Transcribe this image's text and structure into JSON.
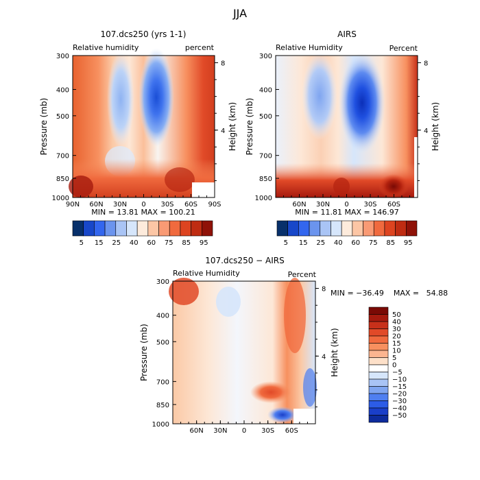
{
  "page": {
    "title": "JJA"
  },
  "chart_data": [
    {
      "type": "heatmap",
      "title": "107.dcs250 (yrs 1-1)",
      "left_label": "Relative humidity",
      "right_label": "percent",
      "ylabel": "Pressure (mb)",
      "y2label": "Height (km)",
      "xticks": [
        "90N",
        "60N",
        "30N",
        "0",
        "30S",
        "60S",
        "90S"
      ],
      "yticks": [
        "300",
        "400",
        "500",
        "700",
        "850",
        "1000"
      ],
      "y2ticks": [
        "8",
        "4"
      ],
      "min_max": "MIN =    13.81    MAX =  100.21",
      "stats": {
        "min": 13.81,
        "max": 100.21
      },
      "colorbar": {
        "labels": [
          "5",
          "15",
          "25",
          "40",
          "60",
          "75",
          "85",
          "95"
        ],
        "colors": [
          "#08306b",
          "#1847c9",
          "#3366ee",
          "#6b94ee",
          "#a9c4f5",
          "#d6e6fb",
          "#fdebdc",
          "#fcc6a5",
          "#f99a74",
          "#f06a3e",
          "#dd4420",
          "#bf2c12",
          "#8f1208"
        ]
      }
    },
    {
      "type": "heatmap",
      "title": "AIRS",
      "left_label": "Relative Humidity",
      "right_label": "Percent",
      "ylabel": "Pressure (mb)",
      "y2label": "Height (km)",
      "xticks": [
        "60N",
        "30N",
        "0",
        "30S",
        "60S"
      ],
      "yticks": [
        "300",
        "400",
        "500",
        "700",
        "850",
        "1000"
      ],
      "y2ticks": [
        "8",
        "4"
      ],
      "min_max": "MIN =    11.81    MAX =  146.97",
      "stats": {
        "min": 11.81,
        "max": 146.97
      },
      "colorbar": {
        "labels": [
          "5",
          "15",
          "25",
          "40",
          "60",
          "75",
          "85",
          "95"
        ],
        "colors": [
          "#08306b",
          "#1847c9",
          "#3366ee",
          "#6b94ee",
          "#a9c4f5",
          "#d6e6fb",
          "#fdebdc",
          "#fcc6a5",
          "#f99a74",
          "#f06a3e",
          "#dd4420",
          "#bf2c12",
          "#8f1208"
        ]
      }
    },
    {
      "type": "heatmap",
      "title": "107.dcs250 − AIRS",
      "left_label": "Relative Humidity",
      "right_label": "Percent",
      "ylabel": "Pressure (mb)",
      "y2label": "Height (km)",
      "xticks": [
        "60N",
        "30N",
        "0",
        "30S",
        "60S"
      ],
      "yticks": [
        "300",
        "400",
        "500",
        "700",
        "850",
        "1000"
      ],
      "y2ticks": [
        "8",
        "4"
      ],
      "min_max": "MIN = −36.49    MAX =   54.88",
      "stats": {
        "min": -36.49,
        "max": 54.88
      },
      "colorbar": {
        "labels": [
          "50",
          "40",
          "30",
          "20",
          "15",
          "10",
          "5",
          "0",
          "−5",
          "−10",
          "−15",
          "−20",
          "−30",
          "−40",
          "−50"
        ],
        "colors": [
          "#7a0a05",
          "#a51a0e",
          "#c7301a",
          "#e14a28",
          "#f06a3e",
          "#f7905f",
          "#fbb590",
          "#fde0c9",
          "#ffffff",
          "#d6e6fb",
          "#a9c4f5",
          "#7fa5f0",
          "#4f7ff0",
          "#2c5ce6",
          "#1a3fc9",
          "#0d2b9c"
        ]
      }
    }
  ]
}
